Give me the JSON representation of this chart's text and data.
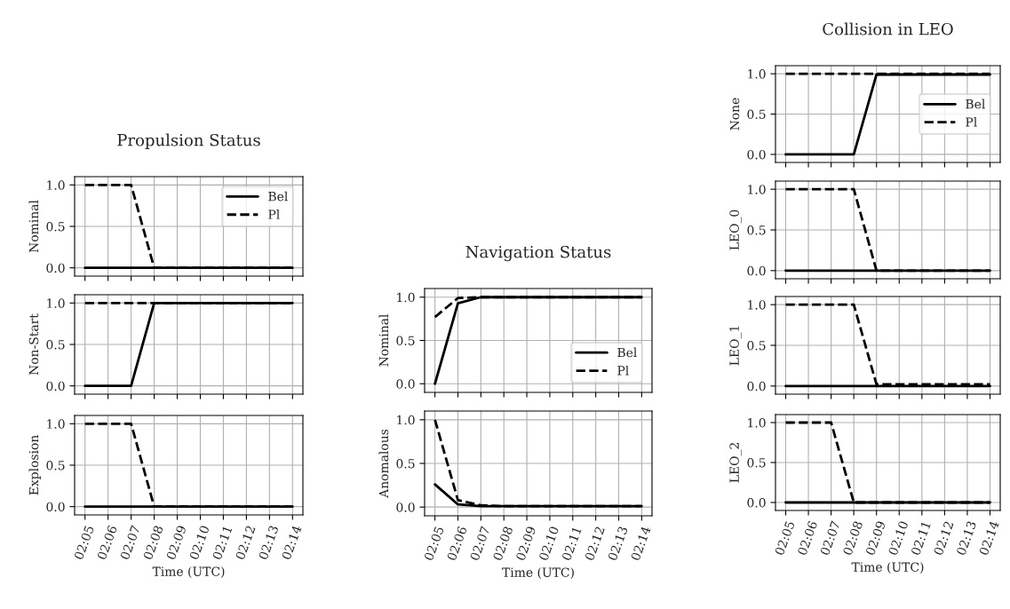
{
  "chart_data": [
    {
      "type": "line",
      "title": "Propulsion Status",
      "ylabel": "Nominal",
      "categories": [
        null,
        null,
        null,
        null,
        null,
        null,
        null,
        null,
        null,
        null
      ],
      "ylim": [
        -0.1,
        1.1
      ],
      "yticks": [
        {
          "value": 0,
          "label": "0.0"
        },
        {
          "value": 0.5,
          "label": "0.5"
        },
        {
          "value": 1,
          "label": "1.0"
        }
      ],
      "grid": true,
      "legend": "top right",
      "tick_labels": "y",
      "series": [
        {
          "name": "Bel",
          "color": "#000000",
          "line_style": "solid",
          "values": [
            0,
            0,
            0,
            0,
            0,
            0,
            0,
            0,
            0,
            0
          ]
        },
        {
          "name": "Pl",
          "color": "#000000",
          "line_style": "dashed",
          "values": [
            1,
            1,
            1,
            0,
            0,
            0,
            0,
            0,
            0,
            0
          ]
        }
      ]
    },
    {
      "type": "line",
      "ylabel": "Non-Start",
      "categories": [
        null,
        null,
        null,
        null,
        null,
        null,
        null,
        null,
        null,
        null
      ],
      "ylim": [
        -0.1,
        1.1
      ],
      "yticks": [
        {
          "value": 0,
          "label": "0.0"
        },
        {
          "value": 0.5,
          "label": "0.5"
        },
        {
          "value": 1,
          "label": "1.0"
        }
      ],
      "grid": true,
      "tick_labels": "y",
      "series": [
        {
          "color": "#000000",
          "line_style": "solid",
          "values": [
            0,
            0,
            0,
            1,
            1,
            1,
            1,
            1,
            1,
            1
          ]
        },
        {
          "color": "#000000",
          "line_style": "dashed",
          "values": [
            1,
            1,
            1,
            1,
            1,
            1,
            1,
            1,
            1,
            1
          ]
        }
      ]
    },
    {
      "type": "line",
      "ylabel": "Explosion",
      "xlabel": "Time (UTC)",
      "categories": [
        "02:05",
        "02:06",
        "02:07",
        "02:08",
        "02:09",
        "02:10",
        "02:11",
        "02:12",
        "02:13",
        "02:14"
      ],
      "ylim": [
        -0.1,
        1.1
      ],
      "yticks": [
        {
          "value": 0,
          "label": "0.0"
        },
        {
          "value": 0.5,
          "label": "0.5"
        },
        {
          "value": 1,
          "label": "1.0"
        }
      ],
      "grid": true,
      "series": [
        {
          "color": "#000000",
          "line_style": "solid",
          "values": [
            0,
            0,
            0,
            0,
            0,
            0,
            0,
            0,
            0,
            0
          ]
        },
        {
          "color": "#000000",
          "line_style": "dashed",
          "values": [
            1,
            1,
            1,
            0,
            0,
            0,
            0,
            0,
            0,
            0
          ]
        }
      ]
    },
    {
      "type": "line",
      "title": "Navigation Status",
      "ylabel": "Nominal",
      "categories": [
        null,
        null,
        null,
        null,
        null,
        null,
        null,
        null,
        null,
        null
      ],
      "ylim": [
        -0.1,
        1.1
      ],
      "yticks": [
        {
          "value": 0,
          "label": "0.0"
        },
        {
          "value": 0.5,
          "label": "0.5"
        },
        {
          "value": 1,
          "label": "1.0"
        }
      ],
      "grid": true,
      "legend": "lower right",
      "tick_labels": "y",
      "series": [
        {
          "name": "Bel",
          "color": "#000000",
          "line_style": "solid",
          "values": [
            0,
            0.93,
            1,
            1,
            1,
            1,
            1,
            1,
            1,
            1
          ]
        },
        {
          "name": "Pl",
          "color": "#000000",
          "line_style": "dashed",
          "values": [
            0.77,
            0.99,
            1,
            1,
            1,
            1,
            1,
            1,
            1,
            1
          ]
        }
      ]
    },
    {
      "type": "line",
      "ylabel": "Anomalous",
      "xlabel": "Time (UTC)",
      "categories": [
        "02:05",
        "02:06",
        "02:07",
        "02:08",
        "02:09",
        "02:10",
        "02:11",
        "02:12",
        "02:13",
        "02:14"
      ],
      "ylim": [
        -0.1,
        1.1
      ],
      "yticks": [
        {
          "value": 0,
          "label": "0.0"
        },
        {
          "value": 0.5,
          "label": "0.5"
        },
        {
          "value": 1,
          "label": "1.0"
        }
      ],
      "grid": true,
      "series": [
        {
          "color": "#000000",
          "line_style": "solid",
          "values": [
            0.26,
            0.03,
            0.01,
            0.01,
            0.01,
            0.01,
            0.01,
            0.01,
            0.01,
            0.01
          ]
        },
        {
          "color": "#000000",
          "line_style": "dashed",
          "values": [
            1,
            0.08,
            0.02,
            0.01,
            0.01,
            0.01,
            0.01,
            0.01,
            0.01,
            0.01
          ]
        }
      ]
    },
    {
      "type": "line",
      "title": "Collision in LEO",
      "ylabel": "None",
      "categories": [
        null,
        null,
        null,
        null,
        null,
        null,
        null,
        null,
        null,
        null
      ],
      "ylim": [
        -0.1,
        1.1
      ],
      "yticks": [
        {
          "value": 0,
          "label": "0.0"
        },
        {
          "value": 0.5,
          "label": "0.5"
        },
        {
          "value": 1,
          "label": "1.0"
        }
      ],
      "grid": true,
      "legend": "right",
      "tick_labels": "y",
      "series": [
        {
          "name": "Bel",
          "color": "#000000",
          "line_style": "solid",
          "values": [
            0,
            0,
            0,
            0,
            0.99,
            0.99,
            0.99,
            0.99,
            0.99,
            0.99
          ]
        },
        {
          "name": "Pl",
          "color": "#000000",
          "line_style": "dashed",
          "values": [
            1,
            1,
            1,
            1,
            1,
            1,
            1,
            1,
            1,
            1
          ]
        }
      ]
    },
    {
      "type": "line",
      "ylabel": "LEO_0",
      "categories": [
        null,
        null,
        null,
        null,
        null,
        null,
        null,
        null,
        null,
        null
      ],
      "ylim": [
        -0.1,
        1.1
      ],
      "yticks": [
        {
          "value": 0,
          "label": "0.0"
        },
        {
          "value": 0.5,
          "label": "0.5"
        },
        {
          "value": 1,
          "label": "1.0"
        }
      ],
      "grid": true,
      "tick_labels": "y",
      "series": [
        {
          "color": "#000000",
          "line_style": "solid",
          "values": [
            0,
            0,
            0,
            0,
            0,
            0,
            0,
            0,
            0,
            0
          ]
        },
        {
          "color": "#000000",
          "line_style": "dashed",
          "values": [
            1,
            1,
            1,
            1,
            0,
            0,
            0,
            0,
            0,
            0
          ]
        }
      ]
    },
    {
      "type": "line",
      "ylabel": "LEO_1",
      "categories": [
        null,
        null,
        null,
        null,
        null,
        null,
        null,
        null,
        null,
        null
      ],
      "ylim": [
        -0.1,
        1.1
      ],
      "yticks": [
        {
          "value": 0,
          "label": "0.0"
        },
        {
          "value": 0.5,
          "label": "0.5"
        },
        {
          "value": 1,
          "label": "1.0"
        }
      ],
      "grid": true,
      "tick_labels": "y",
      "series": [
        {
          "color": "#000000",
          "line_style": "solid",
          "values": [
            0,
            0,
            0,
            0,
            0,
            0,
            0,
            0,
            0,
            0
          ]
        },
        {
          "color": "#000000",
          "line_style": "dashed",
          "values": [
            1,
            1,
            1,
            1,
            0.02,
            0.02,
            0.02,
            0.02,
            0.02,
            0.02
          ]
        }
      ]
    },
    {
      "type": "line",
      "ylabel": "LEO_2",
      "xlabel": "Time (UTC)",
      "categories": [
        "02:05",
        "02:06",
        "02:07",
        "02:08",
        "02:09",
        "02:10",
        "02:11",
        "02:12",
        "02:13",
        "02:14"
      ],
      "ylim": [
        -0.1,
        1.1
      ],
      "yticks": [
        {
          "value": 0,
          "label": "0.0"
        },
        {
          "value": 0.5,
          "label": "0.5"
        },
        {
          "value": 1,
          "label": "1.0"
        }
      ],
      "grid": true,
      "series": [
        {
          "color": "#000000",
          "line_style": "solid",
          "values": [
            0,
            0,
            0,
            0,
            0,
            0,
            0,
            0,
            0,
            0
          ]
        },
        {
          "color": "#000000",
          "line_style": "dashed",
          "values": [
            1,
            1,
            1,
            0,
            0,
            0,
            0,
            0,
            0,
            0
          ]
        }
      ]
    }
  ]
}
